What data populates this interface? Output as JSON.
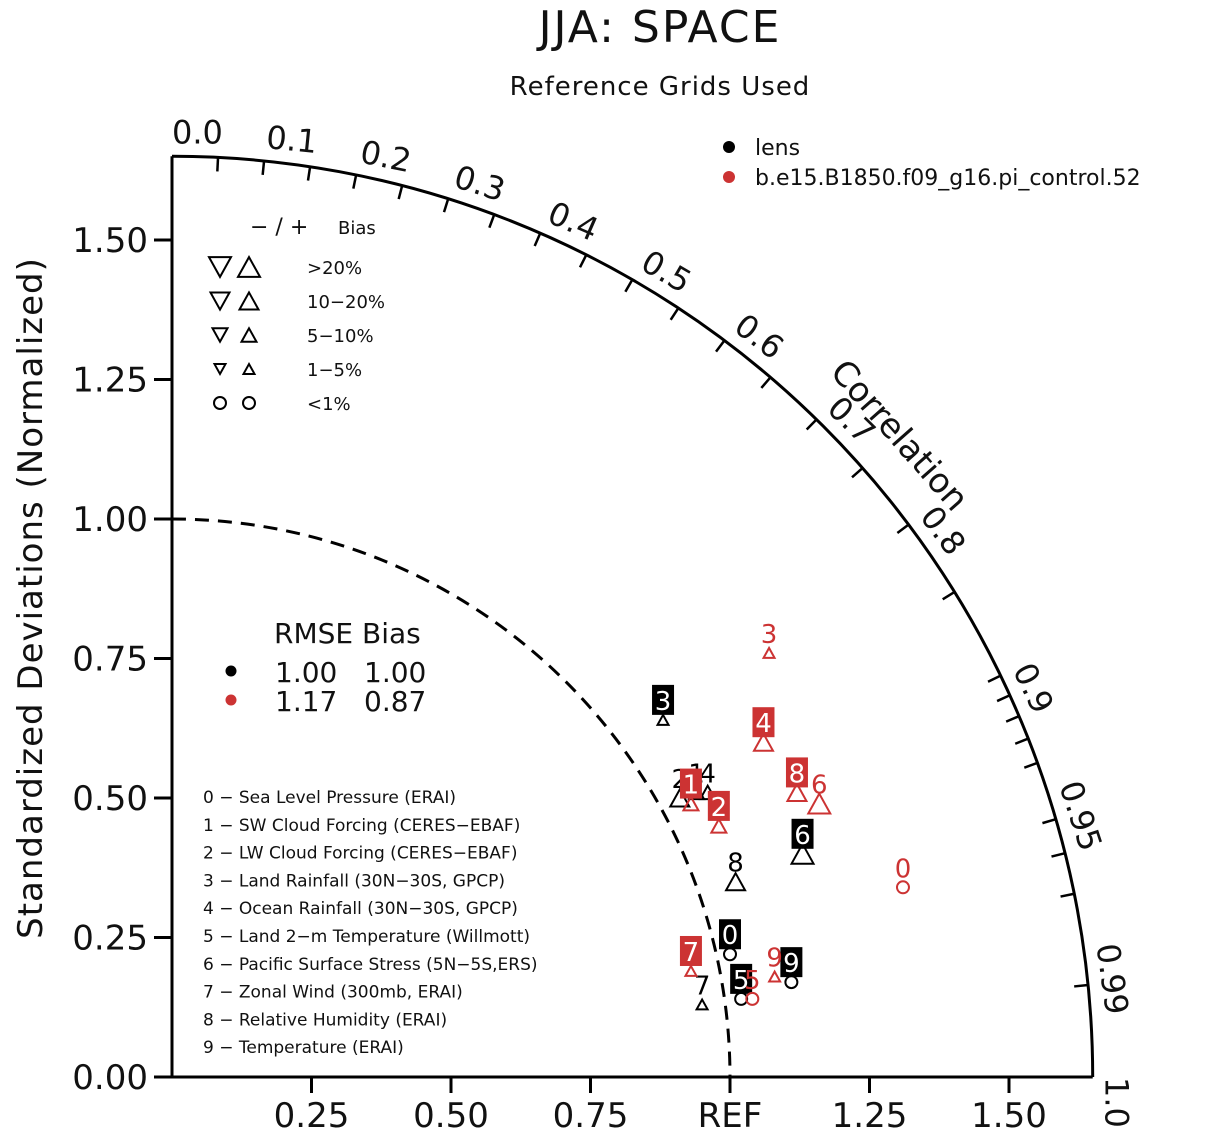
{
  "chart_data": {
    "type": "scatter",
    "title": "JJA: SPACE",
    "subtitle": "Reference Grids Used",
    "ylabel": "Standardized Deviations (Normalized)",
    "xlabel": "",
    "x_tick_labels": [
      "0.25",
      "0.50",
      "0.75",
      "REF",
      "1.25",
      "1.50"
    ],
    "x_ticks": [
      0.25,
      0.5,
      0.75,
      1.0,
      1.25,
      1.5
    ],
    "y_tick_labels": [
      "0.00",
      "0.25",
      "0.50",
      "0.75",
      "1.00",
      "1.25",
      "1.50"
    ],
    "y_ticks": [
      0,
      0.25,
      0.5,
      0.75,
      1.0,
      1.25,
      1.5
    ],
    "radius_max": 1.65,
    "correlation_label": "Correlation",
    "correlation_labels": [
      {
        "r": 0.0,
        "text": "0.0"
      },
      {
        "r": 0.1,
        "text": "0.1"
      },
      {
        "r": 0.2,
        "text": "0.2"
      },
      {
        "r": 0.3,
        "text": "0.3"
      },
      {
        "r": 0.4,
        "text": "0.4"
      },
      {
        "r": 0.5,
        "text": "0.5"
      },
      {
        "r": 0.6,
        "text": "0.6"
      },
      {
        "r": 0.7,
        "text": "0.7"
      },
      {
        "r": 0.8,
        "text": "0.8"
      },
      {
        "r": 0.9,
        "text": "0.9"
      },
      {
        "r": 0.95,
        "text": "0.95"
      },
      {
        "r": 0.99,
        "text": "0.99"
      },
      {
        "r": 1.0,
        "text": "1.0"
      }
    ],
    "ref_circle_radius": 1.0,
    "series": [
      {
        "name": "lens",
        "color": "#000000",
        "rmse": "1.00",
        "bias": "1.00",
        "points": [
          {
            "id": "0",
            "x": 1.0,
            "y": 0.22,
            "boxed": true,
            "bias_symbol": "circle",
            "bias_size": 1
          },
          {
            "id": "1",
            "x": 0.94,
            "y": 0.51,
            "boxed": false,
            "bias_symbol": "triangle-up",
            "bias_size": 2
          },
          {
            "id": "2",
            "x": 0.91,
            "y": 0.5,
            "boxed": false,
            "bias_symbol": "triangle-up",
            "bias_size": 3
          },
          {
            "id": "3",
            "x": 0.88,
            "y": 0.64,
            "boxed": true,
            "bias_symbol": "triangle-up",
            "bias_size": 1
          },
          {
            "id": "4",
            "x": 0.96,
            "y": 0.51,
            "boxed": false,
            "bias_symbol": "triangle-up",
            "bias_size": 2
          },
          {
            "id": "5",
            "x": 1.02,
            "y": 0.14,
            "boxed": true,
            "bias_symbol": "circle",
            "bias_size": 1
          },
          {
            "id": "6",
            "x": 1.13,
            "y": 0.4,
            "boxed": true,
            "bias_symbol": "triangle-up",
            "bias_size": 4
          },
          {
            "id": "7",
            "x": 0.95,
            "y": 0.13,
            "boxed": false,
            "bias_symbol": "triangle-up",
            "bias_size": 1
          },
          {
            "id": "8",
            "x": 1.01,
            "y": 0.35,
            "boxed": false,
            "bias_symbol": "triangle-up",
            "bias_size": 3
          },
          {
            "id": "9",
            "x": 1.11,
            "y": 0.17,
            "boxed": true,
            "bias_symbol": "circle",
            "bias_size": 1
          }
        ]
      },
      {
        "name": "b.e15.B1850.f09_g16.pi_control.52",
        "color": "#cc3333",
        "rmse": "1.17",
        "bias": "0.87",
        "points": [
          {
            "id": "0",
            "x": 1.31,
            "y": 0.34,
            "boxed": false,
            "bias_symbol": "circle",
            "bias_size": 1
          },
          {
            "id": "1",
            "x": 0.93,
            "y": 0.49,
            "boxed": true,
            "bias_symbol": "triangle-up",
            "bias_size": 2
          },
          {
            "id": "2",
            "x": 0.98,
            "y": 0.45,
            "boxed": true,
            "bias_symbol": "triangle-up",
            "bias_size": 2
          },
          {
            "id": "3",
            "x": 1.07,
            "y": 0.76,
            "boxed": false,
            "bias_symbol": "triangle-up",
            "bias_size": 1
          },
          {
            "id": "4",
            "x": 1.06,
            "y": 0.6,
            "boxed": true,
            "bias_symbol": "triangle-up",
            "bias_size": 3
          },
          {
            "id": "5",
            "x": 1.04,
            "y": 0.14,
            "boxed": false,
            "bias_symbol": "circle",
            "bias_size": 1
          },
          {
            "id": "6",
            "x": 1.16,
            "y": 0.49,
            "boxed": false,
            "bias_symbol": "triangle-up",
            "bias_size": 4
          },
          {
            "id": "7",
            "x": 0.93,
            "y": 0.19,
            "boxed": true,
            "bias_symbol": "triangle-up",
            "bias_size": 1
          },
          {
            "id": "8",
            "x": 1.12,
            "y": 0.51,
            "boxed": true,
            "bias_symbol": "triangle-up",
            "bias_size": 3
          },
          {
            "id": "9",
            "x": 1.08,
            "y": 0.18,
            "boxed": false,
            "bias_symbol": "triangle-up",
            "bias_size": 1
          }
        ]
      }
    ],
    "legend": {
      "series_placement": "top-right",
      "bias_header": "− / +",
      "bias_header_word": "Bias",
      "bias_bins": [
        {
          "label": ">20%",
          "size": 4
        },
        {
          "label": "10−20%",
          "size": 3
        },
        {
          "label": "5−10%",
          "size": 2
        },
        {
          "label": "1−5%",
          "size": 1
        },
        {
          "label": "<1%",
          "size": 0
        }
      ],
      "stats_header": "RMSE Bias",
      "variables": [
        "0 − Sea Level Pressure (ERAI)",
        "1 − SW Cloud Forcing (CERES−EBAF)",
        "2 − LW Cloud Forcing (CERES−EBAF)",
        "3 − Land Rainfall (30N−30S, GPCP)",
        "4 − Ocean Rainfall (30N−30S, GPCP)",
        "5 − Land 2−m Temperature (Willmott)",
        "6 − Pacific Surface Stress (5N−5S,ERS)",
        "7 − Zonal Wind (300mb, ERAI)",
        "8 − Relative Humidity (ERAI)",
        "9 − Temperature (ERAI)"
      ]
    }
  }
}
